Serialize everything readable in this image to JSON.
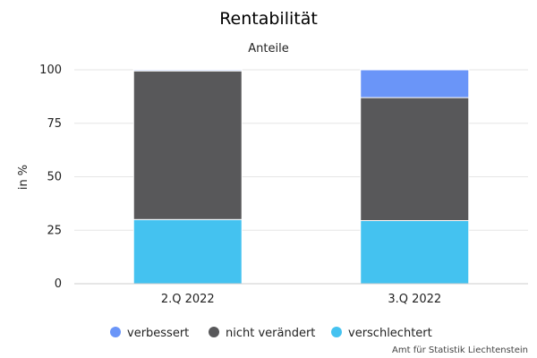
{
  "chart_data": {
    "type": "bar",
    "stacked": true,
    "title": "Rentabilität",
    "subtitle": "Anteile",
    "ylabel": "in %",
    "xlabel": "",
    "ylim": [
      0,
      100
    ],
    "yticks": [
      0,
      25,
      50,
      75,
      100
    ],
    "grid": true,
    "legend_position": "bottom",
    "categories": [
      "2.Q 2022",
      "3.Q 2022"
    ],
    "series": [
      {
        "name": "verschlechtert",
        "color": "#44c2f0",
        "values": [
          30,
          29.5
        ]
      },
      {
        "name": "nicht verändert",
        "color": "#58585a",
        "values": [
          69.5,
          57.5
        ]
      },
      {
        "name": "verbessert",
        "color": "#6a95f8",
        "values": [
          0.5,
          13
        ]
      }
    ],
    "legend_order": [
      "verbessert",
      "nicht verändert",
      "verschlechtert"
    ],
    "credits": "Amt für Statistik Liechtenstein"
  }
}
